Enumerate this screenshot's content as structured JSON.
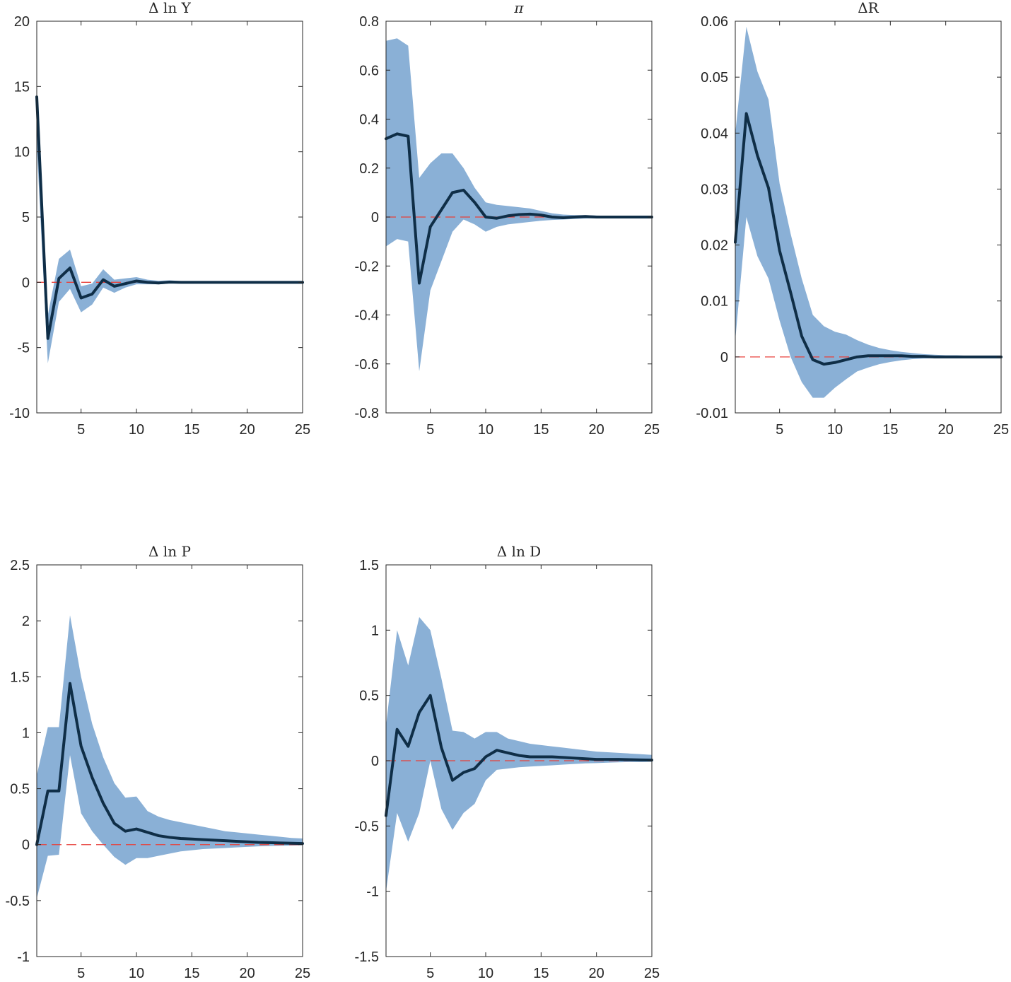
{
  "chart_data": [
    {
      "type": "line",
      "title": "Δ ln Y",
      "xlim": [
        1,
        25
      ],
      "ylim": [
        -10,
        20
      ],
      "xticks": [
        5,
        10,
        15,
        20,
        25
      ],
      "yticks": [
        -10,
        -5,
        0,
        5,
        10,
        15,
        20
      ],
      "ytick_labels": [
        "-10",
        "-5",
        "0",
        "5",
        "10",
        "15",
        "20"
      ],
      "x": [
        1,
        2,
        3,
        4,
        5,
        6,
        7,
        8,
        9,
        10,
        11,
        12,
        13,
        14,
        15,
        16,
        17,
        18,
        19,
        20,
        21,
        22,
        23,
        24,
        25
      ],
      "series": [
        {
          "role": "median",
          "values": [
            14.2,
            -4.3,
            0.3,
            1.1,
            -1.2,
            -0.9,
            0.2,
            -0.3,
            -0.1,
            0.1,
            0.0,
            -0.05,
            0.02,
            0.0,
            0.0,
            0.0,
            0.0,
            0.0,
            0.0,
            0.0,
            0.0,
            0.0,
            0.0,
            0.0,
            0.0
          ]
        },
        {
          "role": "band_lower",
          "values": [
            10.5,
            -6.2,
            -1.5,
            -0.5,
            -2.3,
            -1.7,
            -0.4,
            -0.8,
            -0.4,
            -0.15,
            -0.15,
            -0.15,
            -0.1,
            -0.1,
            -0.1,
            -0.08,
            -0.08,
            -0.08,
            -0.08,
            -0.08,
            -0.08,
            -0.08,
            -0.08,
            -0.08,
            -0.08
          ]
        },
        {
          "role": "band_upper",
          "values": [
            14.3,
            -2.5,
            1.8,
            2.5,
            -0.3,
            -0.1,
            1.0,
            0.2,
            0.3,
            0.4,
            0.2,
            0.12,
            0.15,
            0.1,
            0.1,
            0.08,
            0.08,
            0.08,
            0.08,
            0.08,
            0.08,
            0.08,
            0.08,
            0.08,
            0.08
          ]
        }
      ],
      "zero_line": true
    },
    {
      "type": "line",
      "title": "π",
      "xlim": [
        1,
        25
      ],
      "ylim": [
        -0.8,
        0.8
      ],
      "xticks": [
        5,
        10,
        15,
        20,
        25
      ],
      "yticks": [
        -0.8,
        -0.6,
        -0.4,
        -0.2,
        0,
        0.2,
        0.4,
        0.6,
        0.8
      ],
      "ytick_labels": [
        "-0.8",
        "-0.6",
        "-0.4",
        "-0.2",
        "0",
        "0.2",
        "0.4",
        "0.6",
        "0.8"
      ],
      "x": [
        1,
        2,
        3,
        4,
        5,
        6,
        7,
        8,
        9,
        10,
        11,
        12,
        13,
        14,
        15,
        16,
        17,
        18,
        19,
        20,
        21,
        22,
        23,
        24,
        25
      ],
      "series": [
        {
          "role": "median",
          "values": [
            0.32,
            0.34,
            0.33,
            -0.27,
            -0.04,
            0.03,
            0.1,
            0.11,
            0.06,
            0.0,
            -0.005,
            0.005,
            0.01,
            0.012,
            0.008,
            0.0,
            -0.003,
            0.0,
            0.002,
            0.0,
            0.0,
            0.0,
            0.0,
            0.0,
            0.0
          ]
        },
        {
          "role": "band_lower",
          "values": [
            -0.12,
            -0.09,
            -0.1,
            -0.63,
            -0.3,
            -0.18,
            -0.06,
            -0.01,
            -0.03,
            -0.06,
            -0.04,
            -0.03,
            -0.025,
            -0.02,
            -0.015,
            -0.012,
            -0.01,
            -0.008,
            -0.006,
            -0.005,
            -0.005,
            -0.005,
            -0.005,
            -0.005,
            -0.005
          ]
        },
        {
          "role": "band_upper",
          "values": [
            0.72,
            0.73,
            0.7,
            0.16,
            0.22,
            0.26,
            0.26,
            0.2,
            0.12,
            0.06,
            0.05,
            0.045,
            0.04,
            0.035,
            0.025,
            0.015,
            0.01,
            0.008,
            0.008,
            0.006,
            0.005,
            0.005,
            0.005,
            0.005,
            0.005
          ]
        }
      ],
      "zero_line": true
    },
    {
      "type": "line",
      "title": "ΔR",
      "xlim": [
        1,
        25
      ],
      "ylim": [
        -0.01,
        0.06
      ],
      "xticks": [
        5,
        10,
        15,
        20,
        25
      ],
      "yticks": [
        -0.01,
        0,
        0.01,
        0.02,
        0.03,
        0.04,
        0.05,
        0.06
      ],
      "ytick_labels": [
        "-0.01",
        "0",
        "0.01",
        "0.02",
        "0.03",
        "0.04",
        "0.05",
        "0.06"
      ],
      "x": [
        1,
        2,
        3,
        4,
        5,
        6,
        7,
        8,
        9,
        10,
        11,
        12,
        13,
        14,
        15,
        16,
        17,
        18,
        19,
        20,
        21,
        22,
        23,
        24,
        25
      ],
      "series": [
        {
          "role": "median",
          "values": [
            0.0205,
            0.0435,
            0.036,
            0.0302,
            0.019,
            0.0115,
            0.0037,
            -0.0005,
            -0.0013,
            -0.001,
            -0.0005,
            0.0,
            0.0002,
            0.0002,
            0.0002,
            0.0002,
            0.0001,
            0.0001,
            0.0,
            0.0,
            0.0,
            0.0,
            0.0,
            0.0,
            0.0
          ]
        },
        {
          "role": "band_lower",
          "values": [
            0.003,
            0.025,
            0.018,
            0.014,
            0.0065,
            0.0,
            -0.0045,
            -0.0073,
            -0.0073,
            -0.0055,
            -0.004,
            -0.0026,
            -0.0019,
            -0.0013,
            -0.0009,
            -0.0006,
            -0.0004,
            -0.0003,
            -0.0002,
            -0.0002,
            -0.0001,
            -0.0001,
            -0.0001,
            -0.0001,
            -0.0001
          ]
        },
        {
          "role": "band_upper",
          "values": [
            0.04,
            0.059,
            0.051,
            0.046,
            0.031,
            0.022,
            0.014,
            0.0075,
            0.0055,
            0.0045,
            0.004,
            0.003,
            0.0022,
            0.0016,
            0.0012,
            0.0009,
            0.0007,
            0.0005,
            0.0004,
            0.0003,
            0.0003,
            0.0002,
            0.0002,
            0.0002,
            0.0002
          ]
        }
      ],
      "zero_line": true
    },
    {
      "type": "line",
      "title": "Δ ln P",
      "xlim": [
        1,
        25
      ],
      "ylim": [
        -1,
        2.5
      ],
      "xticks": [
        5,
        10,
        15,
        20,
        25
      ],
      "yticks": [
        -1,
        -0.5,
        0,
        0.5,
        1,
        1.5,
        2,
        2.5
      ],
      "ytick_labels": [
        "-1",
        "-0.5",
        "0",
        "0.5",
        "1",
        "1.5",
        "2",
        "2.5"
      ],
      "x": [
        1,
        2,
        3,
        4,
        5,
        6,
        7,
        8,
        9,
        10,
        11,
        12,
        13,
        14,
        15,
        16,
        17,
        18,
        19,
        20,
        21,
        22,
        23,
        24,
        25
      ],
      "series": [
        {
          "role": "median",
          "values": [
            0.0,
            0.48,
            0.48,
            1.44,
            0.88,
            0.6,
            0.37,
            0.19,
            0.12,
            0.14,
            0.11,
            0.08,
            0.065,
            0.055,
            0.05,
            0.045,
            0.04,
            0.035,
            0.03,
            0.025,
            0.02,
            0.018,
            0.015,
            0.012,
            0.01
          ]
        },
        {
          "role": "band_lower",
          "values": [
            -0.48,
            -0.1,
            -0.09,
            0.8,
            0.28,
            0.12,
            0.0,
            -0.11,
            -0.18,
            -0.12,
            -0.12,
            -0.1,
            -0.08,
            -0.06,
            -0.05,
            -0.04,
            -0.035,
            -0.03,
            -0.025,
            -0.02,
            -0.015,
            -0.012,
            -0.01,
            -0.008,
            -0.006
          ]
        },
        {
          "role": "band_upper",
          "values": [
            0.62,
            1.05,
            1.05,
            2.05,
            1.5,
            1.08,
            0.78,
            0.55,
            0.42,
            0.43,
            0.3,
            0.25,
            0.22,
            0.2,
            0.18,
            0.16,
            0.14,
            0.12,
            0.11,
            0.1,
            0.09,
            0.08,
            0.07,
            0.06,
            0.055
          ]
        }
      ],
      "zero_line": true
    },
    {
      "type": "line",
      "title": "Δ ln D",
      "xlim": [
        1,
        25
      ],
      "ylim": [
        -1.5,
        1.5
      ],
      "xticks": [
        5,
        10,
        15,
        20,
        25
      ],
      "yticks": [
        -1.5,
        -1,
        -0.5,
        0,
        0.5,
        1,
        1.5
      ],
      "ytick_labels": [
        "-1.5",
        "-1",
        "-0.5",
        "0",
        "0.5",
        "1",
        "1.5"
      ],
      "x": [
        1,
        2,
        3,
        4,
        5,
        6,
        7,
        8,
        9,
        10,
        11,
        12,
        13,
        14,
        15,
        16,
        17,
        18,
        19,
        20,
        21,
        22,
        23,
        24,
        25
      ],
      "series": [
        {
          "role": "median",
          "values": [
            -0.42,
            0.24,
            0.11,
            0.37,
            0.5,
            0.1,
            -0.15,
            -0.09,
            -0.06,
            0.03,
            0.08,
            0.06,
            0.04,
            0.03,
            0.03,
            0.03,
            0.025,
            0.02,
            0.015,
            0.01,
            0.01,
            0.01,
            0.008,
            0.006,
            0.005
          ]
        },
        {
          "role": "band_lower",
          "values": [
            -1.0,
            -0.4,
            -0.62,
            -0.4,
            0.0,
            -0.37,
            -0.53,
            -0.4,
            -0.33,
            -0.15,
            -0.07,
            -0.06,
            -0.05,
            -0.045,
            -0.04,
            -0.035,
            -0.03,
            -0.025,
            -0.02,
            -0.018,
            -0.015,
            -0.012,
            -0.01,
            -0.01,
            -0.008
          ]
        },
        {
          "role": "band_upper",
          "values": [
            0.27,
            1.0,
            0.73,
            1.1,
            1.0,
            0.63,
            0.23,
            0.22,
            0.17,
            0.22,
            0.22,
            0.17,
            0.15,
            0.13,
            0.12,
            0.11,
            0.1,
            0.09,
            0.08,
            0.07,
            0.065,
            0.06,
            0.055,
            0.05,
            0.045
          ]
        }
      ],
      "zero_line": true
    }
  ],
  "colors": {
    "band": "#8ab0d6",
    "median": "#0f2e47",
    "zero_line": "#e8413b",
    "axes": "#262626"
  }
}
